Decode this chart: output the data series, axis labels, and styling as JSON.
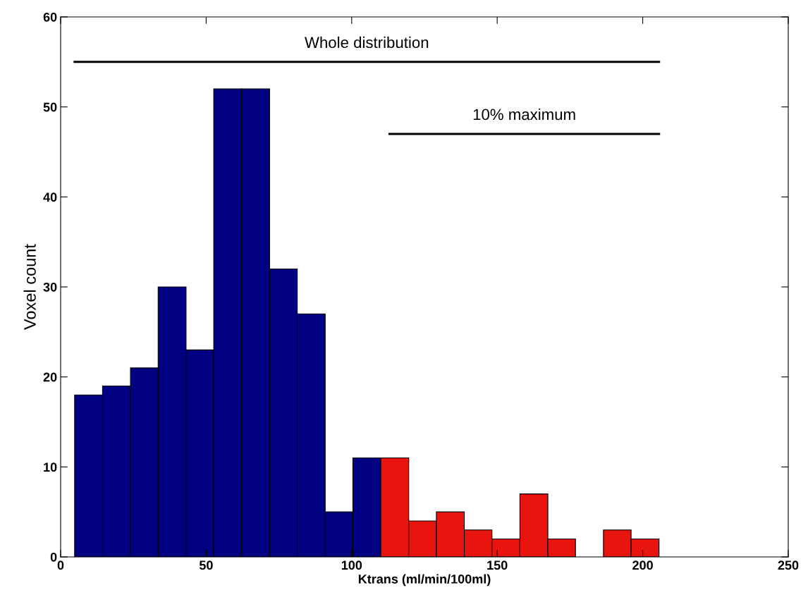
{
  "chart_data": {
    "type": "histogram",
    "xlabel": "Ktrans (ml/min/100ml)",
    "ylabel": "Voxel count",
    "bins": [
      4.8,
      14.4,
      24.0,
      33.5,
      43.1,
      52.6,
      62.2,
      71.8,
      81.3,
      90.9,
      100.4,
      110.0,
      119.6,
      129.1,
      138.7,
      148.2,
      157.8,
      167.4,
      176.9,
      186.5,
      196.0,
      205.6
    ],
    "series": [
      {
        "values": [
          18,
          19,
          21,
          30,
          23,
          52,
          52,
          32,
          27,
          5,
          11,
          11,
          4,
          5,
          3,
          2,
          7,
          2,
          null,
          3,
          2
        ],
        "colors": [
          "#000080",
          "#000080",
          "#000080",
          "#000080",
          "#000080",
          "#000080",
          "#000080",
          "#000080",
          "#000080",
          "#000080",
          "#000080",
          "#e8140e",
          "#e8140e",
          "#e8140e",
          "#e8140e",
          "#e8140e",
          "#e8140e",
          "#e8140e",
          "#e8140e",
          "#e8140e",
          "#e8140e"
        ]
      },
      {
        "type": "line",
        "color": "#000000",
        "x": [
          4.8,
          205.6
        ],
        "values": [
          55,
          55
        ]
      },
      {
        "type": "line",
        "color": "#000000",
        "x": [
          113,
          205.6
        ],
        "values": [
          47,
          47
        ]
      }
    ],
    "annotations": [
      {
        "text": "Whole distribution",
        "x": 105.2,
        "y": 55
      },
      {
        "text": "10% maximum",
        "x": 159.3,
        "y": 47
      }
    ],
    "xlim": [
      0,
      250
    ],
    "ylim": [
      0,
      60
    ],
    "xticks": [
      0,
      50,
      100,
      150,
      200,
      250
    ],
    "yticks": [
      0,
      10,
      20,
      30,
      40,
      50,
      60
    ],
    "grid": false
  }
}
